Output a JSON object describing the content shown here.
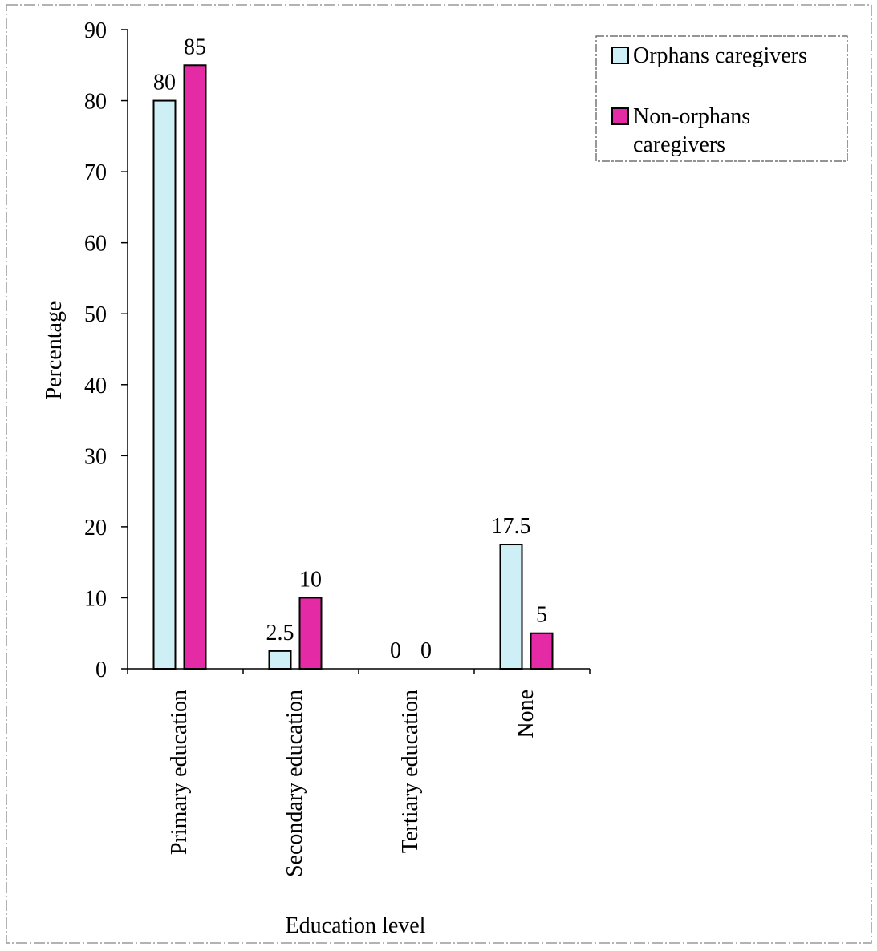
{
  "chart_data": {
    "type": "bar",
    "categories": [
      "Primary education",
      "Secondary education",
      "Tertiary education",
      "None"
    ],
    "series": [
      {
        "name": "Orphans caregivers",
        "values": [
          80,
          2.5,
          0,
          17.5
        ],
        "data_labels": [
          "80",
          "2.5",
          "0",
          "17.5"
        ],
        "color": "#cdeff5"
      },
      {
        "name": "Non-orphans caregivers",
        "values": [
          85,
          10,
          0,
          5
        ],
        "data_labels": [
          "85",
          "10",
          "0",
          "5"
        ],
        "color": "#e52aa6"
      }
    ],
    "title": "",
    "xlabel": "Education level",
    "ylabel": "Percentage",
    "ylim": [
      0,
      90
    ],
    "yticks": [
      0,
      10,
      20,
      30,
      40,
      50,
      60,
      70,
      80,
      90
    ],
    "grid": false,
    "legend": {
      "placement": "top-right",
      "entries": [
        {
          "lines": [
            "Orphans caregivers"
          ]
        },
        {
          "lines": [
            "Non-orphans",
            "caregivers"
          ]
        }
      ]
    },
    "colors": {
      "orphans": "#cdeff5",
      "non_orphans": "#e52aa6",
      "axis": "#000000"
    }
  }
}
